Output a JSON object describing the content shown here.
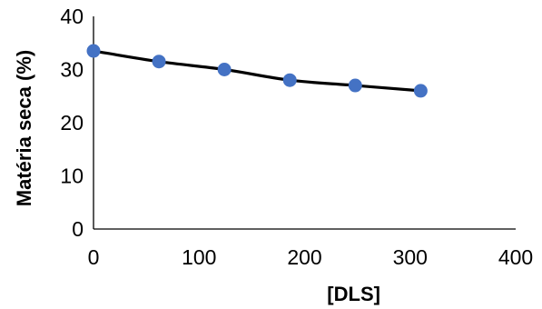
{
  "chart_data": {
    "type": "line",
    "title": "",
    "xlabel": "[DLS]",
    "ylabel": "Matéria seca (%)",
    "xlim": [
      0,
      400
    ],
    "ylim": [
      0,
      40
    ],
    "xticks": [
      "0",
      "100",
      "200",
      "300",
      "400"
    ],
    "yticks": [
      "0",
      "10",
      "20",
      "30",
      "40"
    ],
    "grid": false,
    "series": [
      {
        "x": [
          0,
          62,
          124,
          186,
          248,
          310
        ],
        "y": [
          33.5,
          31.5,
          30.0,
          28.0,
          27.0,
          26.0
        ]
      }
    ],
    "colors": {
      "line": "#000000",
      "marker": "#4472C4",
      "axis": "#000000"
    }
  }
}
